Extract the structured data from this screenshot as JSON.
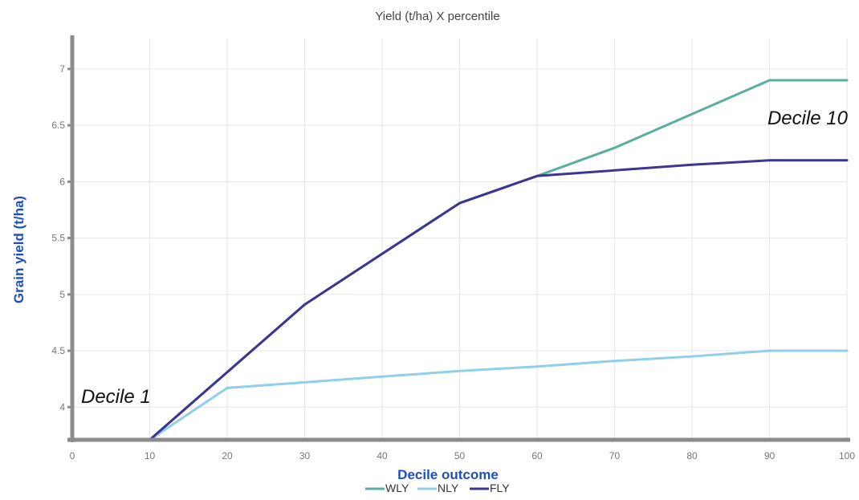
{
  "chart_data": {
    "type": "line",
    "title": "Yield (t/ha) X percentile",
    "xlabel": "Decile outcome",
    "ylabel": "Grain yield (t/ha)",
    "x_ticks": [
      "0",
      "10",
      "20",
      "30",
      "40",
      "50",
      "60",
      "70",
      "80",
      "90",
      "100"
    ],
    "y_ticks": [
      "4",
      "4.5",
      "5",
      "5.5",
      "6",
      "6.5",
      "7"
    ],
    "xlim": [
      0,
      100
    ],
    "ylim": [
      3.71,
      7.27
    ],
    "grid": true,
    "legend_position": "bottom-center",
    "series": [
      {
        "name": "WLY",
        "color": "#5aae9f",
        "points": [
          [
            0,
            3.71
          ],
          [
            10,
            3.71
          ],
          [
            20,
            4.31
          ],
          [
            30,
            4.91
          ],
          [
            40,
            5.36
          ],
          [
            50,
            5.81
          ],
          [
            60,
            6.05
          ],
          [
            70,
            6.3
          ],
          [
            80,
            6.6
          ],
          [
            90,
            6.9
          ],
          [
            100,
            6.9
          ]
        ]
      },
      {
        "name": "NLY",
        "color": "#8fcfea",
        "points": [
          [
            0,
            3.71
          ],
          [
            10,
            3.71
          ],
          [
            20,
            4.17
          ],
          [
            30,
            4.22
          ],
          [
            40,
            4.27
          ],
          [
            50,
            4.32
          ],
          [
            60,
            4.36
          ],
          [
            70,
            4.41
          ],
          [
            80,
            4.45
          ],
          [
            90,
            4.5
          ],
          [
            100,
            4.5
          ]
        ]
      },
      {
        "name": "FLY",
        "color": "#3d3591",
        "points": [
          [
            0,
            3.71
          ],
          [
            10,
            3.71
          ],
          [
            20,
            4.31
          ],
          [
            30,
            4.91
          ],
          [
            40,
            5.36
          ],
          [
            50,
            5.81
          ],
          [
            60,
            6.05
          ],
          [
            70,
            6.1
          ],
          [
            80,
            6.15
          ],
          [
            90,
            6.19
          ],
          [
            100,
            6.19
          ]
        ]
      }
    ],
    "annotations": [
      {
        "text": "Decile 1",
        "x": 0,
        "y": 4.1
      },
      {
        "text": "Decile 10",
        "x": 100,
        "y": 6.55
      }
    ]
  },
  "colors": {
    "axis": "#8c8c8c",
    "grid": "#e6e6e6",
    "tick_text": "#777777",
    "axis_title": "#1f4ec0",
    "title_text": "#444444"
  }
}
